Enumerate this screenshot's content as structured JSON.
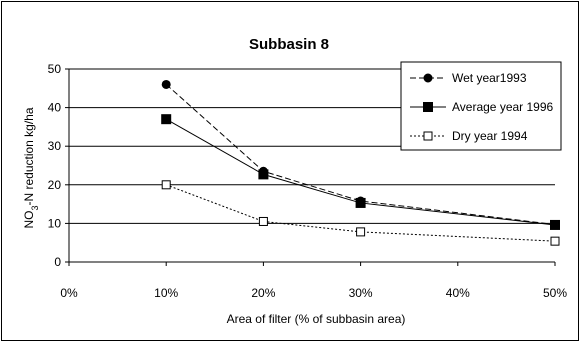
{
  "chart_data": {
    "type": "line",
    "title": "Subbasin 8",
    "xlabel": "Area of filter (% of subbasin area)",
    "ylabel_parts": {
      "before": "NO",
      "sub": "3",
      "after": "-N reduction kg/ha"
    },
    "x_ticks": [
      "0%",
      "10%",
      "20%",
      "30%",
      "40%",
      "50%"
    ],
    "y_ticks": [
      "0",
      "10",
      "20",
      "30",
      "40",
      "50"
    ],
    "xlim": [
      0,
      50
    ],
    "ylim": [
      0,
      50
    ],
    "grid": "horizontal",
    "legend_position": "top-right",
    "x": [
      10,
      20,
      30,
      50
    ],
    "series": [
      {
        "name": "Wet year1993",
        "values": [
          46,
          23.5,
          15.8,
          9.7
        ],
        "line": "dashed",
        "marker": "filled-circle",
        "color": "#000000"
      },
      {
        "name": "Average year 1996",
        "values": [
          37,
          22.7,
          15.3,
          9.6
        ],
        "line": "solid",
        "marker": "filled-square",
        "color": "#000000"
      },
      {
        "name": "Dry year 1994",
        "values": [
          20,
          10.5,
          7.8,
          5.4
        ],
        "line": "dotted",
        "marker": "open-square",
        "color": "#000000"
      }
    ]
  }
}
